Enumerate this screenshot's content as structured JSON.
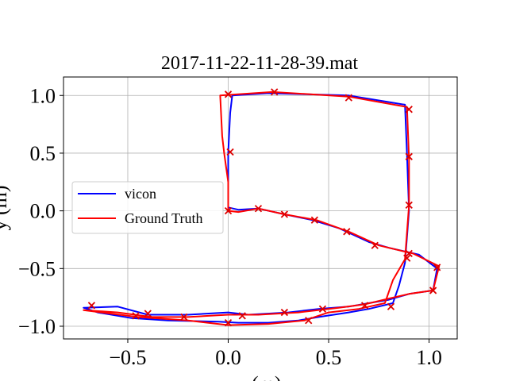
{
  "chart_data": {
    "type": "line",
    "title": "2017-11-22-11-28-39.mat",
    "xlabel": "x (m)",
    "ylabel": "y (m)",
    "xlim": [
      -0.82,
      1.14
    ],
    "ylim": [
      -1.11,
      1.16
    ],
    "x_ticks": [
      -0.5,
      0.0,
      0.5,
      1.0
    ],
    "x_tick_labels": [
      "−0.5",
      "0.0",
      "0.5",
      "1.0"
    ],
    "y_ticks": [
      -1.0,
      -0.5,
      0.0,
      0.5,
      1.0
    ],
    "y_tick_labels": [
      "−1.0",
      "−0.5",
      "0.0",
      "0.5",
      "1.0"
    ],
    "grid": true,
    "legend_position": "center-left",
    "series": [
      {
        "name": "vicon",
        "color": "#0000ff",
        "points": [
          [
            0.0,
            0.03
          ],
          [
            0.0,
            0.5
          ],
          [
            0.01,
            0.85
          ],
          [
            0.02,
            1.0
          ],
          [
            0.2,
            1.02
          ],
          [
            0.6,
            1.0
          ],
          [
            0.88,
            0.92
          ],
          [
            0.89,
            0.5
          ],
          [
            0.9,
            0.0
          ],
          [
            0.88,
            -0.45
          ],
          [
            0.85,
            -0.65
          ],
          [
            0.82,
            -0.8
          ],
          [
            0.7,
            -0.85
          ],
          [
            0.6,
            -0.88
          ],
          [
            0.45,
            -0.92
          ],
          [
            0.35,
            -0.95
          ],
          [
            0.2,
            -0.97
          ],
          [
            0.05,
            -0.97
          ],
          [
            -0.05,
            -0.96
          ],
          [
            -0.3,
            -0.95
          ],
          [
            -0.48,
            -0.93
          ],
          [
            -0.65,
            -0.88
          ],
          [
            -0.72,
            -0.84
          ],
          [
            -0.55,
            -0.83
          ],
          [
            -0.4,
            -0.9
          ],
          [
            -0.2,
            -0.9
          ],
          [
            0.0,
            -0.88
          ],
          [
            0.1,
            -0.9
          ],
          [
            0.3,
            -0.88
          ],
          [
            0.45,
            -0.85
          ],
          [
            0.6,
            -0.83
          ],
          [
            0.7,
            -0.8
          ],
          [
            0.8,
            -0.77
          ],
          [
            0.9,
            -0.72
          ],
          [
            1.02,
            -0.69
          ],
          [
            1.04,
            -0.5
          ],
          [
            0.95,
            -0.38
          ],
          [
            0.8,
            -0.32
          ],
          [
            0.7,
            -0.27
          ],
          [
            0.55,
            -0.15
          ],
          [
            0.42,
            -0.08
          ],
          [
            0.28,
            -0.03
          ],
          [
            0.15,
            0.02
          ],
          [
            0.05,
            0.01
          ],
          [
            0.0,
            0.03
          ]
        ]
      },
      {
        "name": "Ground Truth",
        "color": "#ff0000",
        "points": [
          [
            0.0,
            0.0
          ],
          [
            0.0,
            0.25
          ],
          [
            -0.02,
            0.5
          ],
          [
            -0.03,
            0.65
          ],
          [
            -0.04,
            1.0
          ],
          [
            0.22,
            1.03
          ],
          [
            0.6,
            0.99
          ],
          [
            0.89,
            0.9
          ],
          [
            0.9,
            0.45
          ],
          [
            0.9,
            0.05
          ],
          [
            0.88,
            -0.42
          ],
          [
            0.82,
            -0.6
          ],
          [
            0.78,
            -0.8
          ],
          [
            0.65,
            -0.85
          ],
          [
            0.5,
            -0.88
          ],
          [
            0.38,
            -0.95
          ],
          [
            0.2,
            -0.98
          ],
          [
            0.0,
            -0.99
          ],
          [
            -0.2,
            -0.95
          ],
          [
            -0.45,
            -0.92
          ],
          [
            -0.72,
            -0.86
          ],
          [
            -0.55,
            -0.88
          ],
          [
            -0.38,
            -0.92
          ],
          [
            -0.2,
            -0.92
          ],
          [
            0.0,
            -0.9
          ],
          [
            0.15,
            -0.9
          ],
          [
            0.35,
            -0.88
          ],
          [
            0.55,
            -0.84
          ],
          [
            0.68,
            -0.81
          ],
          [
            0.8,
            -0.76
          ],
          [
            0.9,
            -0.72
          ],
          [
            1.02,
            -0.69
          ],
          [
            1.05,
            -0.48
          ],
          [
            0.92,
            -0.37
          ],
          [
            0.75,
            -0.3
          ],
          [
            0.6,
            -0.18
          ],
          [
            0.44,
            -0.08
          ],
          [
            0.28,
            -0.03
          ],
          [
            0.15,
            0.02
          ],
          [
            0.05,
            -0.01
          ],
          [
            0.0,
            0.0
          ]
        ]
      }
    ],
    "markers": {
      "symbol": "x",
      "color": "#dd0000",
      "points": [
        [
          0.0,
          1.01
        ],
        [
          0.23,
          1.03
        ],
        [
          0.6,
          0.98
        ],
        [
          0.9,
          0.88
        ],
        [
          0.9,
          0.47
        ],
        [
          0.9,
          0.05
        ],
        [
          0.9,
          -0.37
        ],
        [
          0.89,
          -0.41
        ],
        [
          1.04,
          -0.49
        ],
        [
          1.02,
          -0.69
        ],
        [
          0.81,
          -0.83
        ],
        [
          0.68,
          -0.82
        ],
        [
          0.47,
          -0.85
        ],
        [
          0.28,
          -0.88
        ],
        [
          0.07,
          -0.91
        ],
        [
          0.0,
          -0.97
        ],
        [
          -0.22,
          -0.92
        ],
        [
          -0.4,
          -0.89
        ],
        [
          -0.46,
          -0.91
        ],
        [
          -0.68,
          -0.82
        ],
        [
          0.4,
          -0.95
        ],
        [
          0.01,
          0.51
        ],
        [
          0.0,
          0.0
        ],
        [
          0.15,
          0.02
        ],
        [
          0.28,
          -0.03
        ],
        [
          0.43,
          -0.08
        ],
        [
          0.59,
          -0.18
        ],
        [
          0.73,
          -0.3
        ]
      ]
    }
  }
}
